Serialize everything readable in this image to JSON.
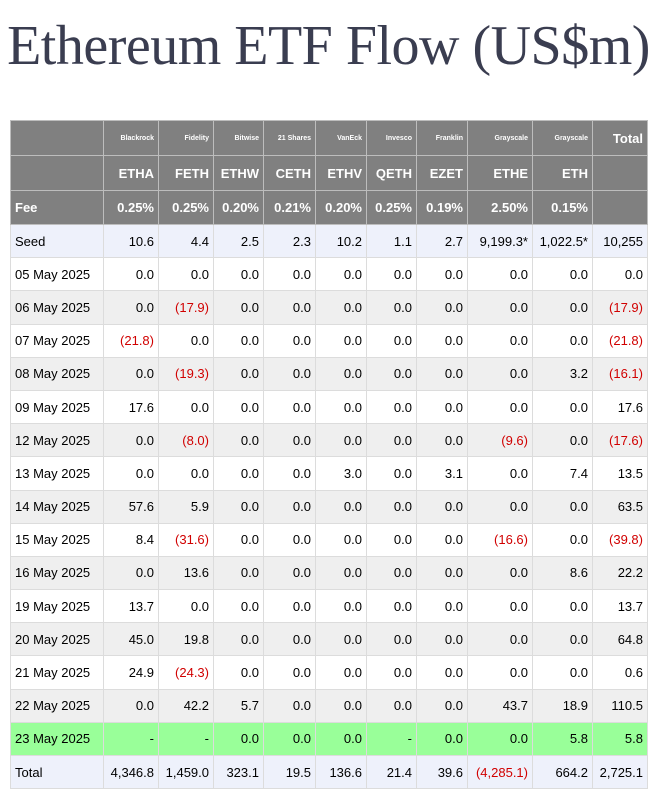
{
  "title": "Ethereum ETF Flow (US$m)",
  "colors": {
    "header_bg": "#808080",
    "title": "#3a3d50",
    "negative": "#d10000",
    "highlight_row": "#99ff99",
    "seed_total_row": "#eef1fb",
    "alt_row": "#efefef"
  },
  "header": {
    "issuers": [
      "Blackrock",
      "Fidelity",
      "Bitwise",
      "21 Shares",
      "VanEck",
      "Invesco",
      "Franklin",
      "Grayscale",
      "Grayscale"
    ],
    "total_label": "Total",
    "tickers": [
      "ETHA",
      "FETH",
      "ETHW",
      "CETH",
      "ETHV",
      "QETH",
      "EZET",
      "ETHE",
      "ETH"
    ],
    "fee_label": "Fee",
    "fees": [
      "0.25%",
      "0.25%",
      "0.20%",
      "0.21%",
      "0.20%",
      "0.25%",
      "0.19%",
      "2.50%",
      "0.15%"
    ]
  },
  "rows": [
    {
      "label": "Seed",
      "values": [
        "10.6",
        "4.4",
        "2.5",
        "2.3",
        "10.2",
        "1.1",
        "2.7",
        "9,199.3*",
        "1,022.5*"
      ],
      "total": "10,255"
    },
    {
      "label": "05 May 2025",
      "values": [
        "0.0",
        "0.0",
        "0.0",
        "0.0",
        "0.0",
        "0.0",
        "0.0",
        "0.0",
        "0.0"
      ],
      "total": "0.0"
    },
    {
      "label": "06 May 2025",
      "values": [
        "0.0",
        "(17.9)",
        "0.0",
        "0.0",
        "0.0",
        "0.0",
        "0.0",
        "0.0",
        "0.0"
      ],
      "total": "(17.9)"
    },
    {
      "label": "07 May 2025",
      "values": [
        "(21.8)",
        "0.0",
        "0.0",
        "0.0",
        "0.0",
        "0.0",
        "0.0",
        "0.0",
        "0.0"
      ],
      "total": "(21.8)"
    },
    {
      "label": "08 May 2025",
      "values": [
        "0.0",
        "(19.3)",
        "0.0",
        "0.0",
        "0.0",
        "0.0",
        "0.0",
        "0.0",
        "3.2"
      ],
      "total": "(16.1)"
    },
    {
      "label": "09 May 2025",
      "values": [
        "17.6",
        "0.0",
        "0.0",
        "0.0",
        "0.0",
        "0.0",
        "0.0",
        "0.0",
        "0.0"
      ],
      "total": "17.6"
    },
    {
      "label": "12 May 2025",
      "values": [
        "0.0",
        "(8.0)",
        "0.0",
        "0.0",
        "0.0",
        "0.0",
        "0.0",
        "(9.6)",
        "0.0"
      ],
      "total": "(17.6)"
    },
    {
      "label": "13 May 2025",
      "values": [
        "0.0",
        "0.0",
        "0.0",
        "0.0",
        "3.0",
        "0.0",
        "3.1",
        "0.0",
        "7.4"
      ],
      "total": "13.5"
    },
    {
      "label": "14 May 2025",
      "values": [
        "57.6",
        "5.9",
        "0.0",
        "0.0",
        "0.0",
        "0.0",
        "0.0",
        "0.0",
        "0.0"
      ],
      "total": "63.5"
    },
    {
      "label": "15 May 2025",
      "values": [
        "8.4",
        "(31.6)",
        "0.0",
        "0.0",
        "0.0",
        "0.0",
        "0.0",
        "(16.6)",
        "0.0"
      ],
      "total": "(39.8)"
    },
    {
      "label": "16 May 2025",
      "values": [
        "0.0",
        "13.6",
        "0.0",
        "0.0",
        "0.0",
        "0.0",
        "0.0",
        "0.0",
        "8.6"
      ],
      "total": "22.2"
    },
    {
      "label": "19 May 2025",
      "values": [
        "13.7",
        "0.0",
        "0.0",
        "0.0",
        "0.0",
        "0.0",
        "0.0",
        "0.0",
        "0.0"
      ],
      "total": "13.7"
    },
    {
      "label": "20 May 2025",
      "values": [
        "45.0",
        "19.8",
        "0.0",
        "0.0",
        "0.0",
        "0.0",
        "0.0",
        "0.0",
        "0.0"
      ],
      "total": "64.8"
    },
    {
      "label": "21 May 2025",
      "values": [
        "24.9",
        "(24.3)",
        "0.0",
        "0.0",
        "0.0",
        "0.0",
        "0.0",
        "0.0",
        "0.0"
      ],
      "total": "0.6"
    },
    {
      "label": "22 May 2025",
      "values": [
        "0.0",
        "42.2",
        "5.7",
        "0.0",
        "0.0",
        "0.0",
        "0.0",
        "43.7",
        "18.9"
      ],
      "total": "110.5"
    },
    {
      "label": "23 May 2025",
      "values": [
        "-",
        "-",
        "0.0",
        "0.0",
        "0.0",
        "-",
        "0.0",
        "0.0",
        "5.8"
      ],
      "total": "5.8"
    },
    {
      "label": "Total",
      "values": [
        "4,346.8",
        "1,459.0",
        "323.1",
        "19.5",
        "136.6",
        "21.4",
        "39.6",
        "(4,285.1)",
        "664.2"
      ],
      "total": "2,725.1"
    }
  ]
}
